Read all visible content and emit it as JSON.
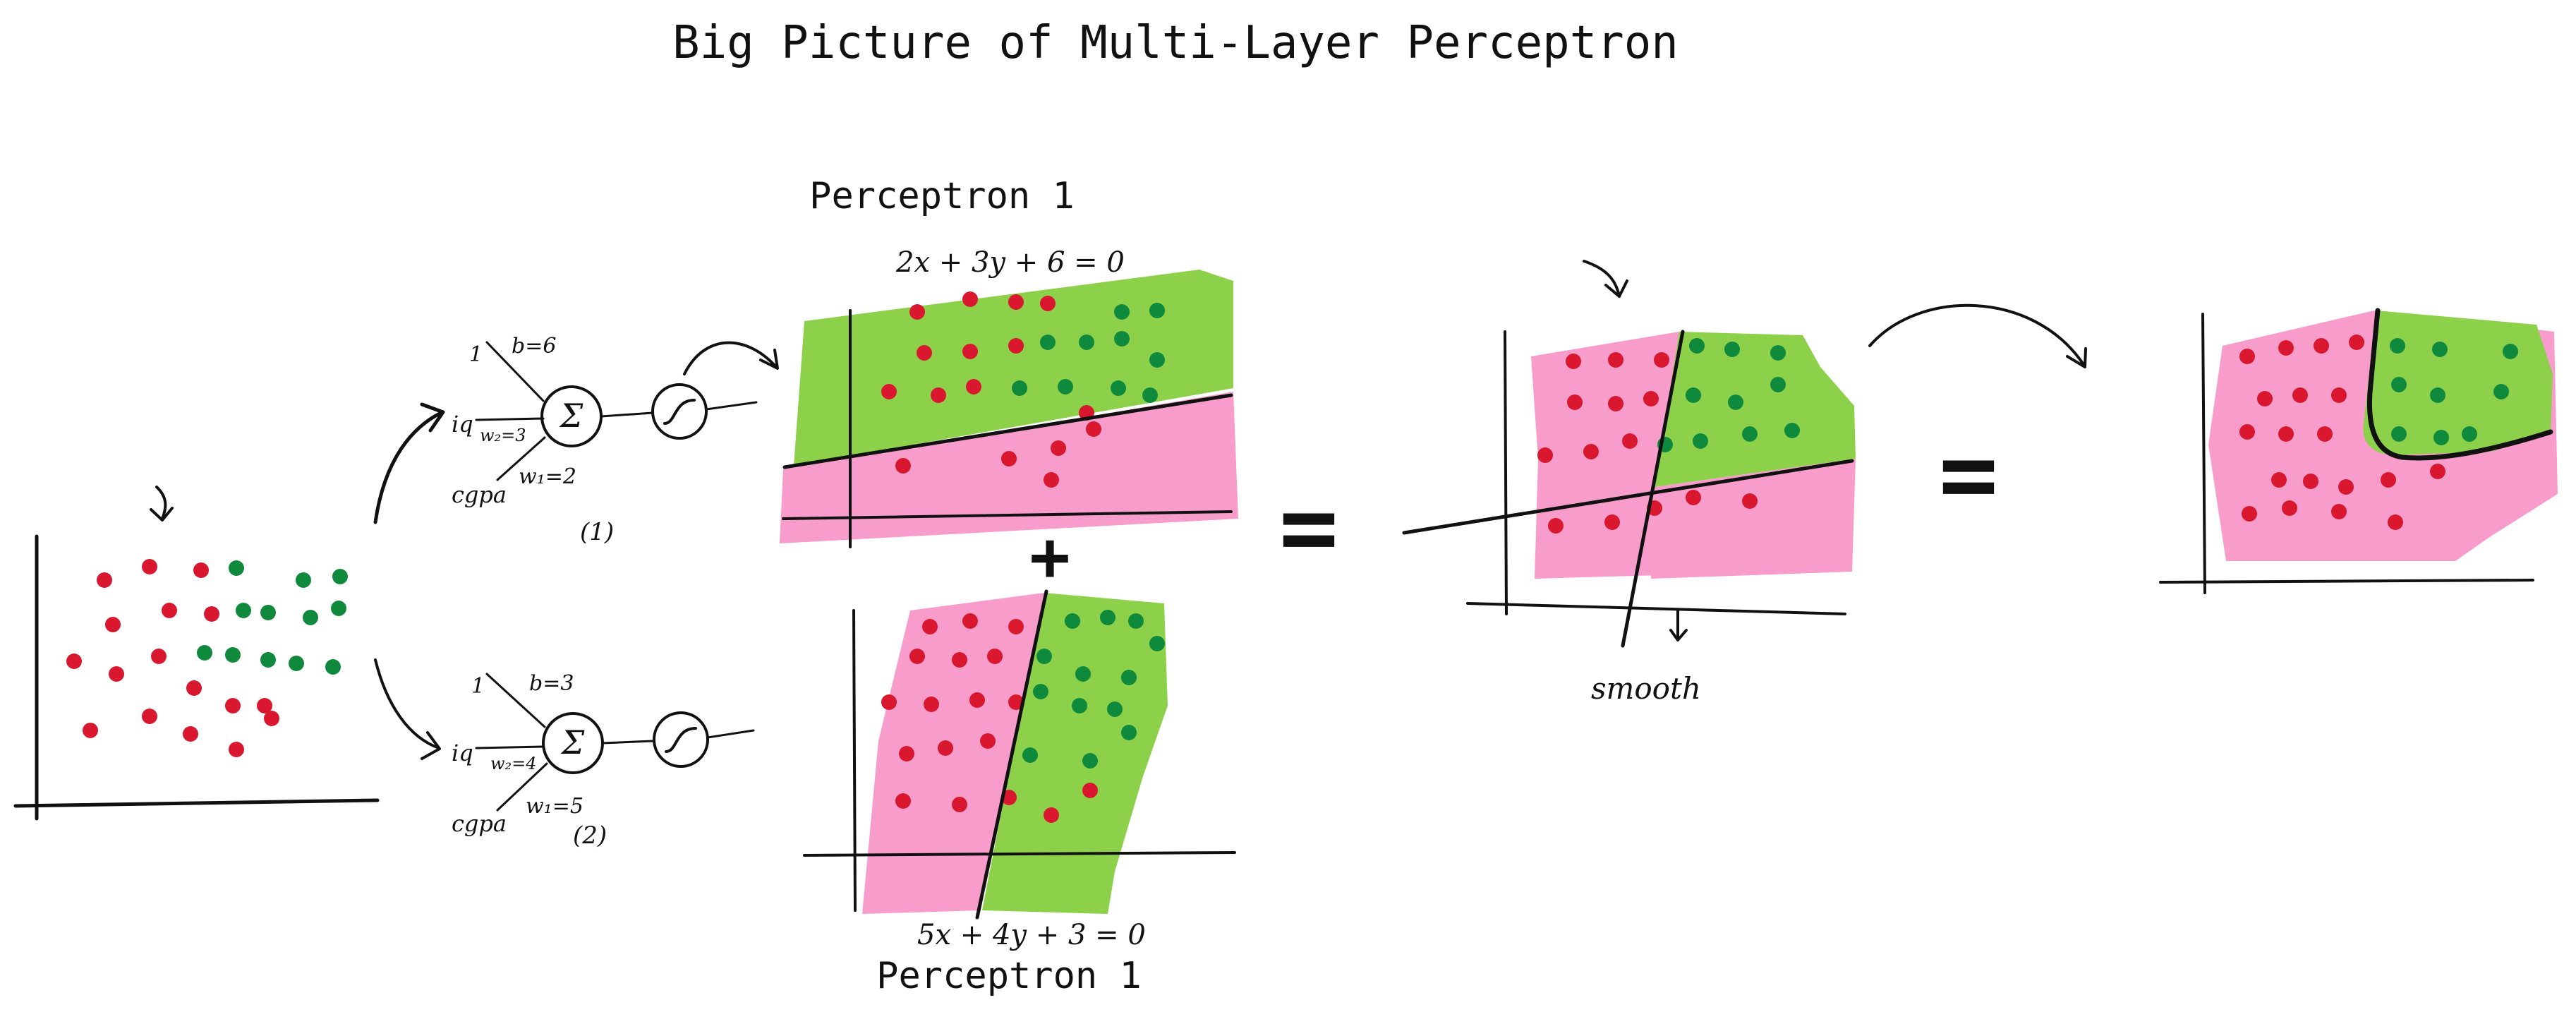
{
  "title": "Big Picture of Multi-Layer Perceptron",
  "colors": {
    "green_region": "#8dd14a",
    "pink_region": "#f79ccb",
    "red_point": "#d9172f",
    "green_point": "#0f8a3c",
    "ink": "#111111"
  },
  "dataset_panel": {
    "point_colors": [
      "red",
      "green"
    ]
  },
  "neurons": [
    {
      "label_id": "(1)",
      "bias_input": "1",
      "bias": "b=6",
      "input_iq": "iq",
      "weight_iq": "w₂=3",
      "input_cgpa": "cgpa",
      "weight_cgpa": "w₁=2",
      "sum_symbol": "Σ"
    },
    {
      "label_id": "(2)",
      "bias_input": "1",
      "bias": "b=3",
      "input_iq": "iq",
      "weight_iq": "w₂=4",
      "input_cgpa": "cgpa",
      "weight_cgpa": "w₁=5",
      "sum_symbol": "Σ"
    }
  ],
  "perceptron_top": {
    "label": "Perceptron 1",
    "equation": "2x + 3y + 6 = 0"
  },
  "perceptron_bottom": {
    "label": "Perceptron 1",
    "equation": "5x + 4y + 3 = 0"
  },
  "operators": {
    "plus": "+",
    "equals_1": "=",
    "equals_2": "="
  },
  "combined_panel": {
    "annotation": "smooth"
  },
  "result_panel": {
    "boundary": "curved"
  }
}
